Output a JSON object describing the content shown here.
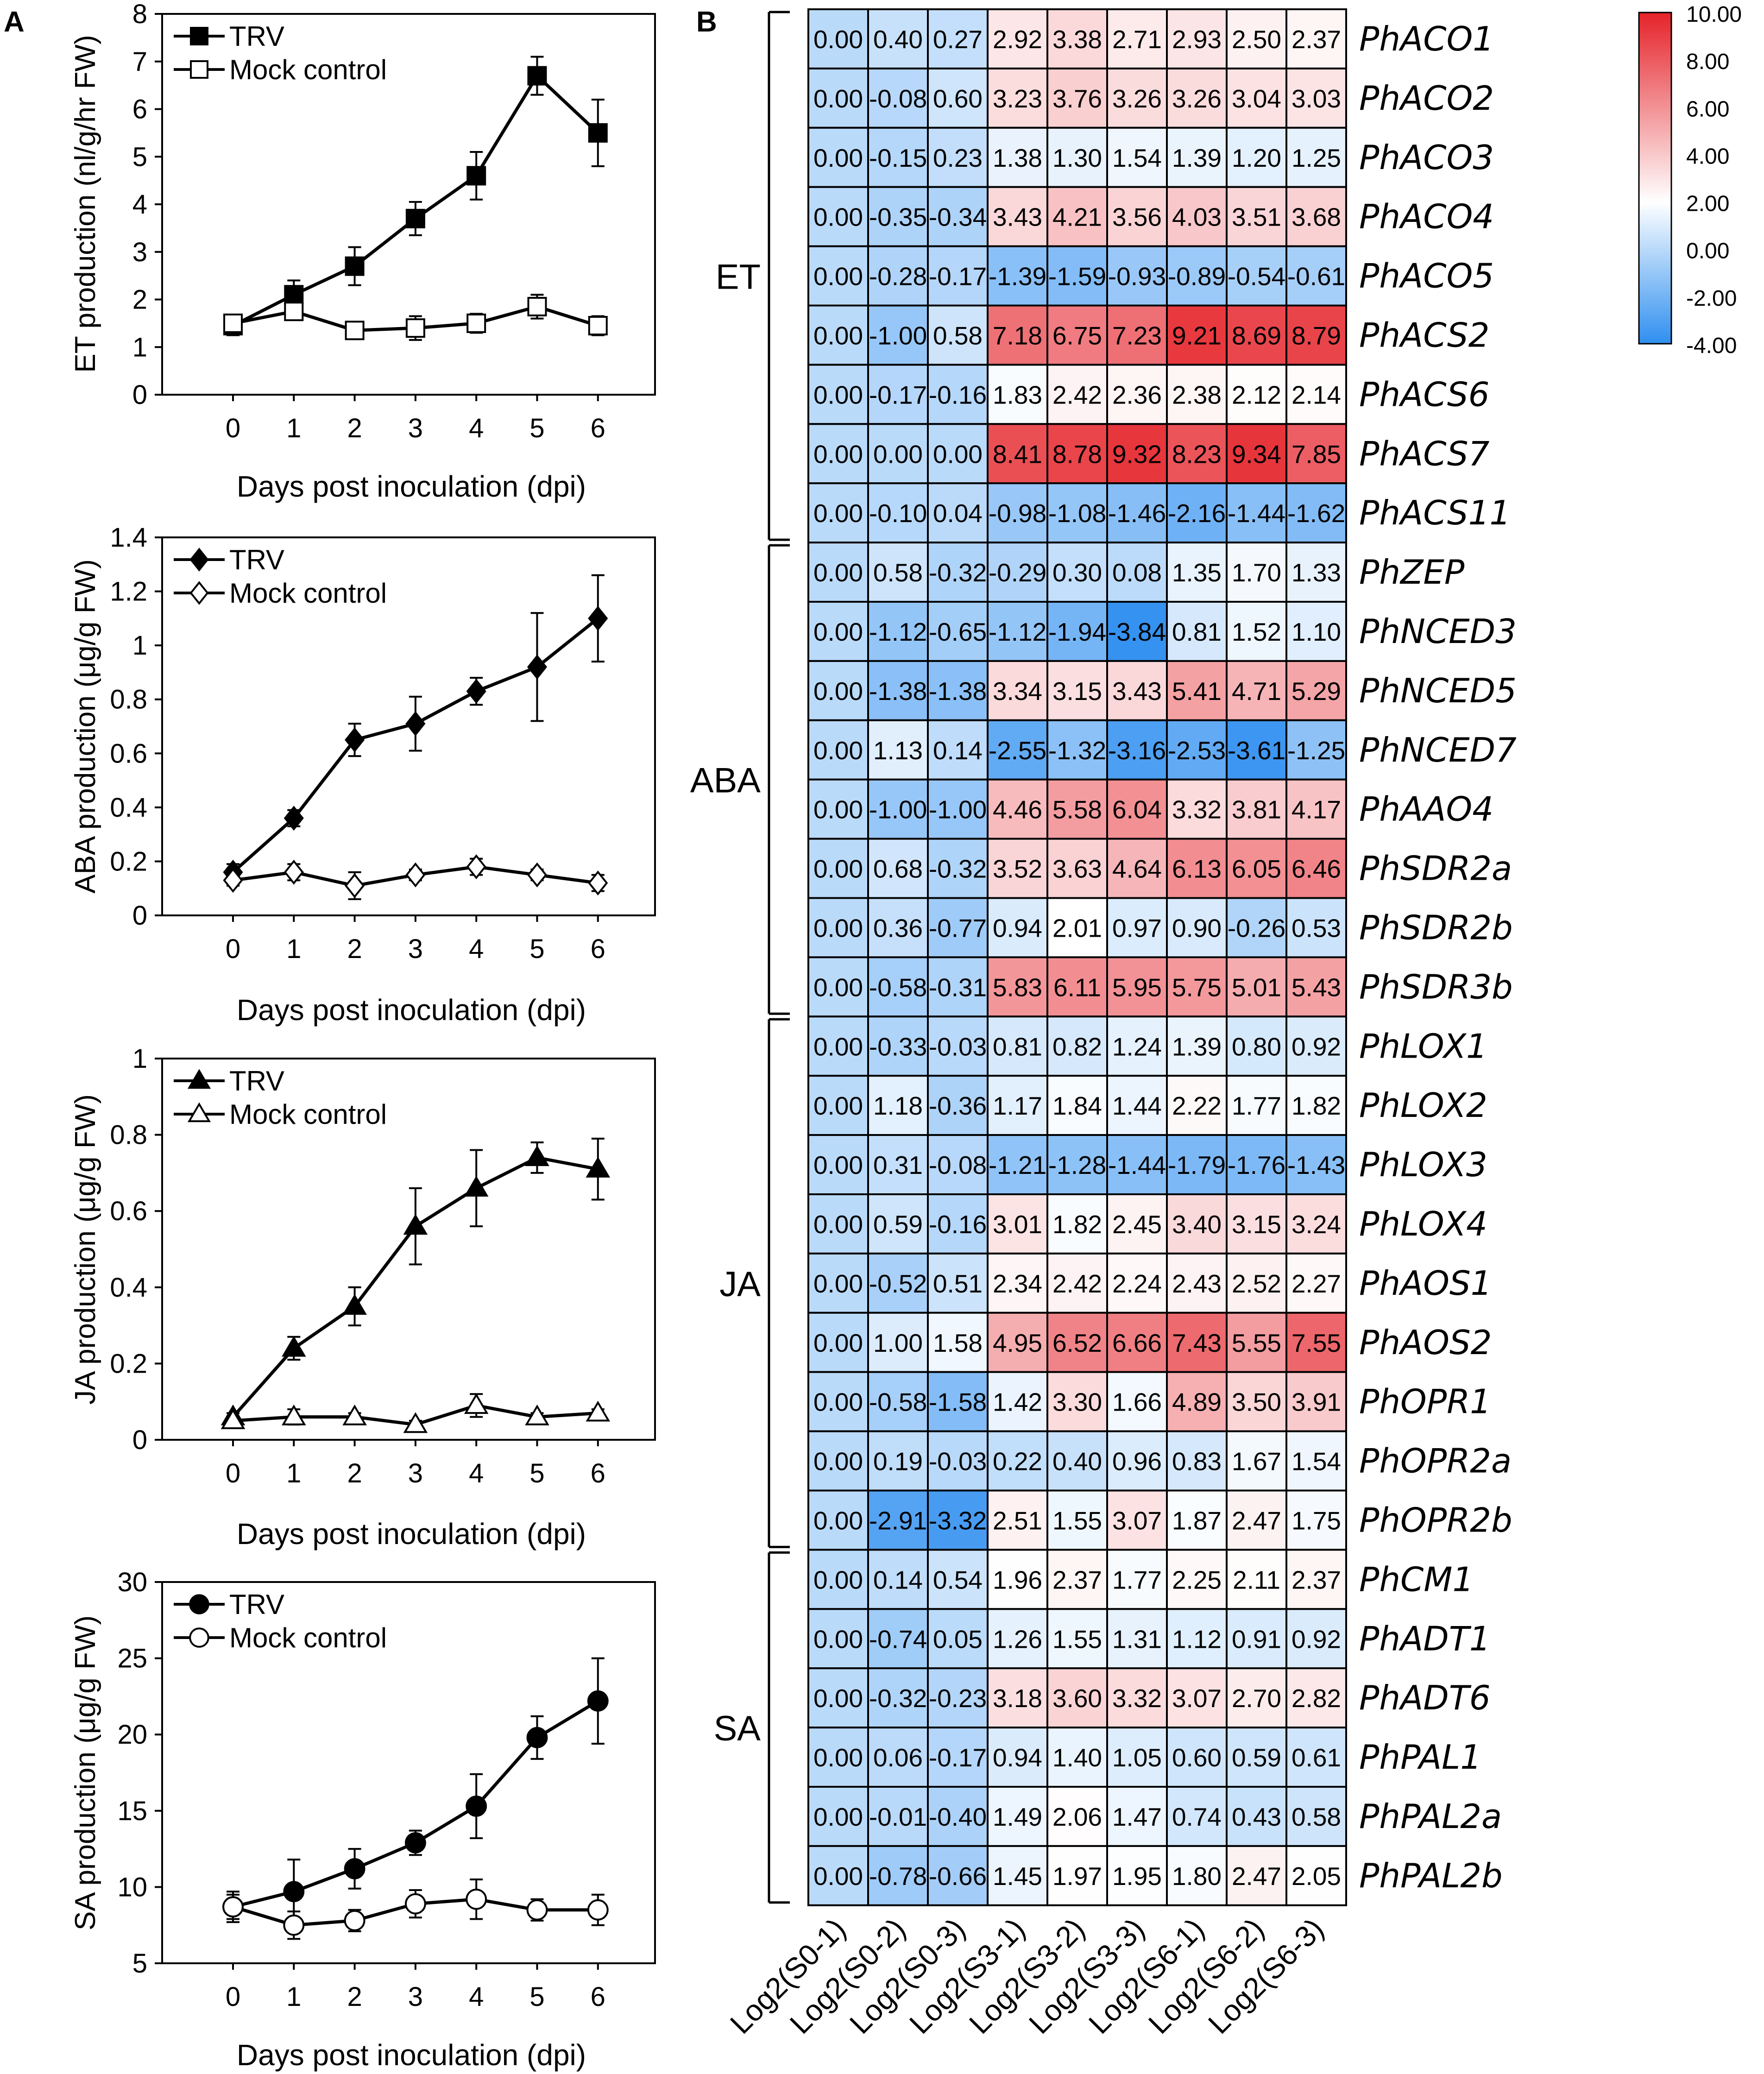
{
  "panel_labels": {
    "a": "A",
    "b": "B"
  },
  "colors": {
    "line": "#000000",
    "heat_low": "#2f8ff0",
    "heat_mid": "#ffffff",
    "heat_high": "#e5232a"
  },
  "chart_data": [
    {
      "id": "et",
      "type": "line",
      "title": "",
      "xlabel": "Days post inoculation (dpi)",
      "ylabel": "ET production (nl/g/hr FW)",
      "x": [
        0,
        1,
        2,
        3,
        4,
        5,
        6
      ],
      "xticks": [
        "0",
        "1",
        "2",
        "3",
        "4",
        "5",
        "6"
      ],
      "ylim": [
        0,
        8
      ],
      "yticks": [
        "0",
        "1",
        "2",
        "3",
        "4",
        "5",
        "6",
        "7",
        "8"
      ],
      "grid": false,
      "legend": "top-left",
      "series": [
        {
          "name": "TRV",
          "marker": "square",
          "filled": true,
          "values": [
            1.45,
            2.1,
            2.7,
            3.7,
            4.6,
            6.7,
            5.5
          ],
          "errors": [
            0.2,
            0.3,
            0.4,
            0.35,
            0.5,
            0.4,
            0.7
          ]
        },
        {
          "name": "Mock control",
          "marker": "square",
          "filled": false,
          "values": [
            1.5,
            1.75,
            1.35,
            1.4,
            1.5,
            1.85,
            1.45
          ],
          "errors": [
            0.15,
            0.15,
            0.1,
            0.25,
            0.2,
            0.25,
            0.2
          ]
        }
      ]
    },
    {
      "id": "aba",
      "type": "line",
      "title": "",
      "xlabel": "Days post inoculation (dpi)",
      "ylabel": "ABA production (μg/g FW)",
      "x": [
        0,
        1,
        2,
        3,
        4,
        5,
        6
      ],
      "xticks": [
        "0",
        "1",
        "2",
        "3",
        "4",
        "5",
        "6"
      ],
      "ylim": [
        0,
        1.4
      ],
      "yticks": [
        "0",
        "0.2",
        "0.4",
        "0.6",
        "0.8",
        "1",
        "1.2",
        "1.4"
      ],
      "grid": false,
      "legend": "top-left",
      "series": [
        {
          "name": "TRV",
          "marker": "diamond",
          "filled": true,
          "values": [
            0.16,
            0.36,
            0.65,
            0.71,
            0.83,
            0.92,
            1.1
          ],
          "errors": [
            0.03,
            0.03,
            0.06,
            0.1,
            0.05,
            0.2,
            0.16
          ]
        },
        {
          "name": "Mock control",
          "marker": "diamond",
          "filled": false,
          "values": [
            0.13,
            0.16,
            0.11,
            0.15,
            0.18,
            0.15,
            0.12
          ],
          "errors": [
            0.02,
            0.03,
            0.05,
            0.02,
            0.03,
            0.02,
            0.03
          ]
        }
      ]
    },
    {
      "id": "ja",
      "type": "line",
      "title": "",
      "xlabel": "Days post inoculation (dpi)",
      "ylabel": "JA production (μg/g FW)",
      "x": [
        0,
        1,
        2,
        3,
        4,
        5,
        6
      ],
      "xticks": [
        "0",
        "1",
        "2",
        "3",
        "4",
        "5",
        "6"
      ],
      "ylim": [
        0,
        1
      ],
      "yticks": [
        "0",
        "0.2",
        "0.4",
        "0.6",
        "0.8",
        "1"
      ],
      "grid": false,
      "legend": "top-left",
      "series": [
        {
          "name": "TRV",
          "marker": "triangle",
          "filled": true,
          "values": [
            0.06,
            0.24,
            0.35,
            0.56,
            0.66,
            0.74,
            0.71
          ],
          "errors": [
            0.01,
            0.03,
            0.05,
            0.1,
            0.1,
            0.04,
            0.08
          ]
        },
        {
          "name": "Mock control",
          "marker": "triangle",
          "filled": false,
          "values": [
            0.05,
            0.06,
            0.06,
            0.04,
            0.09,
            0.06,
            0.07
          ],
          "errors": [
            0.01,
            0.02,
            0.01,
            0.01,
            0.03,
            0.01,
            0.01
          ]
        }
      ]
    },
    {
      "id": "sa",
      "type": "line",
      "title": "",
      "xlabel": "Days post inoculation (dpi)",
      "ylabel": "SA production (μg/g FW)",
      "x": [
        0,
        1,
        2,
        3,
        4,
        5,
        6
      ],
      "xticks": [
        "0",
        "1",
        "2",
        "3",
        "4",
        "5",
        "6"
      ],
      "ylim": [
        5,
        30
      ],
      "yticks": [
        "5",
        "10",
        "15",
        "20",
        "25",
        "30"
      ],
      "grid": false,
      "legend": "top-left",
      "series": [
        {
          "name": "TRV",
          "marker": "circle",
          "filled": true,
          "values": [
            8.7,
            9.7,
            11.2,
            12.9,
            15.3,
            19.8,
            22.2
          ],
          "errors": [
            1.0,
            2.1,
            1.3,
            0.8,
            2.1,
            1.4,
            2.8
          ]
        },
        {
          "name": "Mock control",
          "marker": "circle",
          "filled": false,
          "values": [
            8.7,
            7.5,
            7.8,
            8.9,
            9.2,
            8.5,
            8.5
          ],
          "errors": [
            0.8,
            0.9,
            0.7,
            0.9,
            1.3,
            0.7,
            1.0
          ]
        }
      ]
    },
    {
      "id": "heatmap",
      "type": "heatmap",
      "title": "",
      "columns": [
        "Log2(S0-1)",
        "Log2(S0-2)",
        "Log2(S0-3)",
        "Log2(S3-1)",
        "Log2(S3-2)",
        "Log2(S3-3)",
        "Log2(S6-1)",
        "Log2(S6-2)",
        "Log2(S6-3)"
      ],
      "rows": [
        "PhACO1",
        "PhACO2",
        "PhACO3",
        "PhACO4",
        "PhACO5",
        "PhACS2",
        "PhACS6",
        "PhACS7",
        "PhACS11",
        "PhZEP",
        "PhNCED3",
        "PhNCED5",
        "PhNCED7",
        "PhAAO4",
        "PhSDR2a",
        "PhSDR2b",
        "PhSDR3b",
        "PhLOX1",
        "PhLOX2",
        "PhLOX3",
        "PhLOX4",
        "PhAOS1",
        "PhAOS2",
        "PhOPR1",
        "PhOPR2a",
        "PhOPR2b",
        "PhCM1",
        "PhADT1",
        "PhADT6",
        "PhPAL1",
        "PhPAL2a",
        "PhPAL2b"
      ],
      "values": [
        [
          "0.00",
          "0.40",
          "0.27",
          "2.92",
          "3.38",
          "2.71",
          "2.93",
          "2.50",
          "2.37"
        ],
        [
          "0.00",
          "-0.08",
          "0.60",
          "3.23",
          "3.76",
          "3.26",
          "3.26",
          "3.04",
          "3.03"
        ],
        [
          "0.00",
          "-0.15",
          "0.23",
          "1.38",
          "1.30",
          "1.54",
          "1.39",
          "1.20",
          "1.25"
        ],
        [
          "0.00",
          "-0.35",
          "-0.34",
          "3.43",
          "4.21",
          "3.56",
          "4.03",
          "3.51",
          "3.68"
        ],
        [
          "0.00",
          "-0.28",
          "-0.17",
          "-1.39",
          "-1.59",
          "-0.93",
          "-0.89",
          "-0.54",
          "-0.61"
        ],
        [
          "0.00",
          "-1.00",
          "0.58",
          "7.18",
          "6.75",
          "7.23",
          "9.21",
          "8.69",
          "8.79"
        ],
        [
          "0.00",
          "-0.17",
          "-0.16",
          "1.83",
          "2.42",
          "2.36",
          "2.38",
          "2.12",
          "2.14"
        ],
        [
          "0.00",
          "0.00",
          "0.00",
          "8.41",
          "8.78",
          "9.32",
          "8.23",
          "9.34",
          "7.85"
        ],
        [
          "0.00",
          "-0.10",
          "0.04",
          "-0.98",
          "-1.08",
          "-1.46",
          "-2.16",
          "-1.44",
          "-1.62"
        ],
        [
          "0.00",
          "0.58",
          "-0.32",
          "-0.29",
          "0.30",
          "0.08",
          "1.35",
          "1.70",
          "1.33"
        ],
        [
          "0.00",
          "-1.12",
          "-0.65",
          "-1.12",
          "-1.94",
          "-3.84",
          "0.81",
          "1.52",
          "1.10"
        ],
        [
          "0.00",
          "-1.38",
          "-1.38",
          "3.34",
          "3.15",
          "3.43",
          "5.41",
          "4.71",
          "5.29"
        ],
        [
          "0.00",
          "1.13",
          "0.14",
          "-2.55",
          "-1.32",
          "-3.16",
          "-2.53",
          "-3.61",
          "-1.25"
        ],
        [
          "0.00",
          "-1.00",
          "-1.00",
          "4.46",
          "5.58",
          "6.04",
          "3.32",
          "3.81",
          "4.17"
        ],
        [
          "0.00",
          "0.68",
          "-0.32",
          "3.52",
          "3.63",
          "4.64",
          "6.13",
          "6.05",
          "6.46"
        ],
        [
          "0.00",
          "0.36",
          "-0.77",
          "0.94",
          "2.01",
          "0.97",
          "0.90",
          "-0.26",
          "0.53"
        ],
        [
          "0.00",
          "-0.58",
          "-0.31",
          "5.83",
          "6.11",
          "5.95",
          "5.75",
          "5.01",
          "5.43"
        ],
        [
          "0.00",
          "-0.33",
          "-0.03",
          "0.81",
          "0.82",
          "1.24",
          "1.39",
          "0.80",
          "0.92"
        ],
        [
          "0.00",
          "1.18",
          "-0.36",
          "1.17",
          "1.84",
          "1.44",
          "2.22",
          "1.77",
          "1.82"
        ],
        [
          "0.00",
          "0.31",
          "-0.08",
          "-1.21",
          "-1.28",
          "-1.44",
          "-1.79",
          "-1.76",
          "-1.43"
        ],
        [
          "0.00",
          "0.59",
          "-0.16",
          "3.01",
          "1.82",
          "2.45",
          "3.40",
          "3.15",
          "3.24"
        ],
        [
          "0.00",
          "-0.52",
          "0.51",
          "2.34",
          "2.42",
          "2.24",
          "2.43",
          "2.52",
          "2.27"
        ],
        [
          "0.00",
          "1.00",
          "1.58",
          "4.95",
          "6.52",
          "6.66",
          "7.43",
          "5.55",
          "7.55"
        ],
        [
          "0.00",
          "-0.58",
          "-1.58",
          "1.42",
          "3.30",
          "1.66",
          "4.89",
          "3.50",
          "3.91"
        ],
        [
          "0.00",
          "0.19",
          "-0.03",
          "0.22",
          "0.40",
          "0.96",
          "0.83",
          "1.67",
          "1.54"
        ],
        [
          "0.00",
          "-2.91",
          "-3.32",
          "2.51",
          "1.55",
          "3.07",
          "1.87",
          "2.47",
          "1.75"
        ],
        [
          "0.00",
          "0.14",
          "0.54",
          "1.96",
          "2.37",
          "1.77",
          "2.25",
          "2.11",
          "2.37"
        ],
        [
          "0.00",
          "-0.74",
          "0.05",
          "1.26",
          "1.55",
          "1.31",
          "1.12",
          "0.91",
          "0.92"
        ],
        [
          "0.00",
          "-0.32",
          "-0.23",
          "3.18",
          "3.60",
          "3.32",
          "3.07",
          "2.70",
          "2.82"
        ],
        [
          "0.00",
          "0.06",
          "-0.17",
          "0.94",
          "1.40",
          "1.05",
          "0.60",
          "0.59",
          "0.61"
        ],
        [
          "0.00",
          "-0.01",
          "-0.40",
          "1.49",
          "2.06",
          "1.47",
          "0.74",
          "0.43",
          "0.58"
        ],
        [
          "0.00",
          "-0.78",
          "-0.66",
          "1.45",
          "1.97",
          "1.95",
          "1.80",
          "2.47",
          "2.05"
        ]
      ],
      "groups": [
        {
          "label": "ET",
          "start": 0,
          "end": 8
        },
        {
          "label": "ABA",
          "start": 9,
          "end": 16
        },
        {
          "label": "JA",
          "start": 17,
          "end": 25
        },
        {
          "label": "SA",
          "start": 26,
          "end": 31
        }
      ],
      "color_scale": {
        "min": -4,
        "mid": 2,
        "max": 10
      },
      "colorbar_ticks": [
        "10.00",
        "8.00",
        "6.00",
        "4.00",
        "2.00",
        "0.00",
        "-2.00",
        "-4.00"
      ]
    }
  ]
}
